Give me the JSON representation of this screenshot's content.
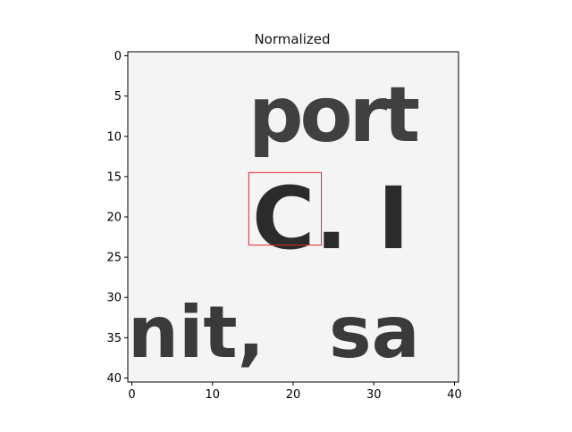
{
  "title": "Normalized",
  "grid_size": 41,
  "xticks": [
    "0",
    "10",
    "20",
    "30",
    "40"
  ],
  "yticks": [
    "0",
    "5",
    "10",
    "15",
    "20",
    "25",
    "30",
    "35",
    "40"
  ],
  "highlight": {
    "x0": 15,
    "y0": 15,
    "x1": 24,
    "y1": 24,
    "color": "#e8262d"
  },
  "snippet_text": [
    "port",
    "C.  I",
    "nit,",
    "sa"
  ]
}
